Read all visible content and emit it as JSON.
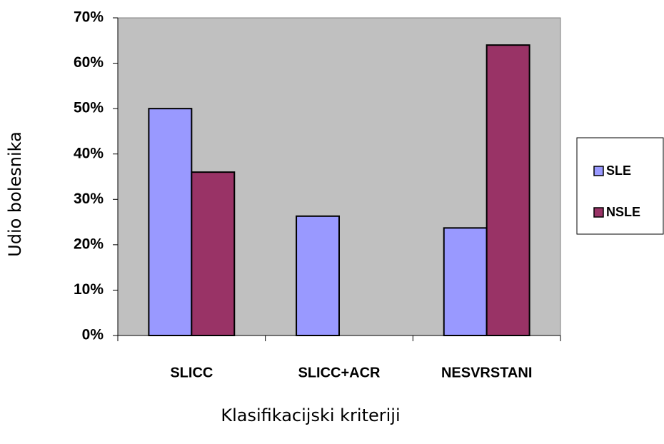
{
  "chart_data": {
    "type": "bar",
    "x_label": "Klasifikacijski kriteriji",
    "y_label": "Udio bolesnika",
    "categories": [
      "SLICC",
      "SLICC+ACR",
      "NESVRSTANI"
    ],
    "series": [
      {
        "name": "SLE",
        "color": "#9999ff",
        "values": [
          50,
          26.3,
          23.7
        ]
      },
      {
        "name": "NSLE",
        "color": "#993366",
        "values": [
          36,
          null,
          64
        ]
      }
    ],
    "ylim": [
      0,
      70
    ],
    "yticks": [
      {
        "value": 0,
        "label": "0%"
      },
      {
        "value": 10,
        "label": "10%"
      },
      {
        "value": 20,
        "label": "20%"
      },
      {
        "value": 30,
        "label": "30%"
      },
      {
        "value": 40,
        "label": "40%"
      },
      {
        "value": 50,
        "label": "50%"
      },
      {
        "value": 60,
        "label": "60%"
      },
      {
        "value": 70,
        "label": "70%"
      }
    ],
    "grid": false,
    "legend": "right",
    "plot_background": "#c0c0c0"
  }
}
